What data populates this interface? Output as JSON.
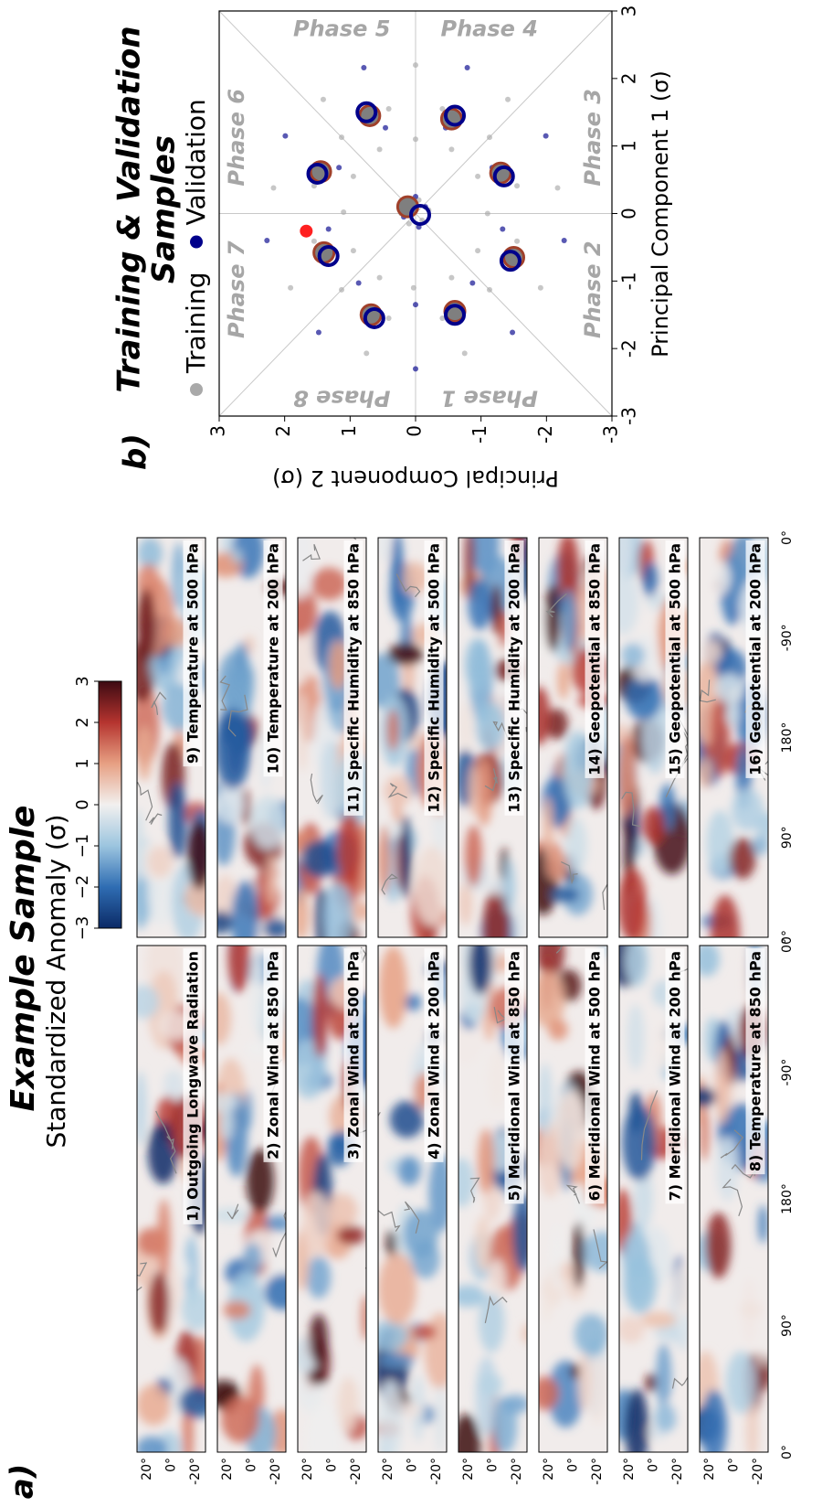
{
  "panel_a": {
    "label": "a)",
    "title": "Example Sample",
    "colorbar": {
      "label": "Standardized Anomaly (σ)",
      "lim": [
        -3,
        3
      ],
      "ticks": [
        {
          "value": -3,
          "label": "−3"
        },
        {
          "value": -2,
          "label": "−2"
        },
        {
          "value": -1,
          "label": "−1"
        },
        0,
        1,
        2,
        3
      ],
      "colors": [
        "#0b2a66",
        "#2f6db3",
        "#9cc5df",
        "#f2f0ef",
        "#e7a083",
        "#b5342f",
        "#3d0a12"
      ]
    },
    "lat_labels": [
      "20°",
      "0°",
      "-20°"
    ],
    "lon_labels": [
      "0°",
      "90°",
      "180°",
      "-90°",
      "0°"
    ],
    "maps": [
      "1) Outgoing Longwave Radiation",
      "2) Zonal Wind at 850 hPa",
      "3) Zonal Wind at 500 hPa",
      "4) Zonal Wind at 200 hPa",
      "5) Meridional Wind at 850 hPa",
      "6) Meridional Wind at 500 hPa",
      "7) Meridional Wind at 200 hPa",
      "8) Temperature at 850 hPa",
      "9) Temperature at 500 hPa",
      "10) Temperature at 200 hPa",
      "11) Specific Humidity at 850 hPa",
      "12) Specific Humidity at 500 hPa",
      "13) Specific Humidity at 200 hPa",
      "14) Geopotential at 850 hPa",
      "15) Geopotential at 500 hPa",
      "16) Geopotential at 200 hPa"
    ]
  },
  "chart_data": {
    "type": "scatter",
    "label": "b)",
    "title": [
      "Training & Validation",
      "Samples"
    ],
    "x_label": "Principal Component 1 (σ)",
    "y_label": "Principal Component 2 (σ)",
    "xlim": [
      -3,
      3
    ],
    "ylim": [
      -3,
      3
    ],
    "xticks": [
      -3,
      -2,
      -1,
      0,
      1,
      2,
      3
    ],
    "yticks": [
      -3,
      -2,
      -1,
      0,
      1,
      2,
      3
    ],
    "legend": "upper center",
    "phases": [
      "Phase 1",
      "Phase 2",
      "Phase 3",
      "Phase 4",
      "Phase 5",
      "Phase 6",
      "Phase 7",
      "Phase 8"
    ],
    "series": [
      {
        "name": "Training",
        "color": "#a9a9a9",
        "marker": "dot",
        "x": [
          1.1,
          0.95,
          0.55,
          0.02,
          -0.55,
          -0.95,
          -1.1,
          -0.95,
          -0.55,
          0.0,
          0.55,
          0.95,
          1.55,
          1.13,
          0.41,
          -0.41,
          -1.13,
          -1.55,
          -1.55,
          -1.13,
          -0.41,
          0.41,
          1.13,
          1.55,
          2.2,
          1.69,
          0.38,
          -1.1,
          -2.07,
          -2.07,
          -1.1,
          0.38,
          1.69,
          0.1,
          -0.15,
          0.05,
          -0.1,
          0.2,
          0.0
        ],
        "values": [
          0.0,
          0.55,
          0.95,
          1.1,
          0.95,
          0.55,
          0.03,
          -0.55,
          -0.95,
          -1.1,
          -0.95,
          -0.55,
          0.41,
          1.13,
          1.55,
          1.55,
          1.13,
          0.41,
          -0.41,
          -1.13,
          -1.55,
          -1.55,
          -1.13,
          -0.41,
          0.0,
          1.41,
          2.17,
          1.91,
          0.75,
          -0.75,
          -1.91,
          -2.17,
          -1.41,
          0.05,
          0.1,
          -0.2,
          -0.1,
          -0.05,
          0.22
        ]
      },
      {
        "name": "Validation",
        "color": "#00008b",
        "marker": "dot",
        "x": [
          1.27,
          0.68,
          -0.23,
          -1.03,
          -1.35,
          -1.03,
          -0.23,
          0.68,
          1.27,
          2.16,
          1.15,
          -0.4,
          -1.76,
          -2.3,
          -1.76,
          -0.4,
          1.15,
          2.16,
          0.15,
          -0.05,
          0.1,
          -0.2,
          0.25
        ],
        "values": [
          0.46,
          1.17,
          1.33,
          0.87,
          0.0,
          -0.87,
          -1.33,
          -1.17,
          -0.46,
          0.79,
          1.99,
          2.27,
          1.48,
          0.0,
          -1.48,
          -2.27,
          -1.99,
          -0.79,
          0.1,
          0.18,
          -0.15,
          -0.05,
          0.0
        ]
      },
      {
        "color": "#7f7f7f",
        "edgecolor": "#a0402a",
        "marker": "disc",
        "x": [
          1.45,
          1.4,
          0.6,
          -0.65,
          -1.45,
          -1.5,
          -0.58,
          0.62,
          0.1
        ],
        "values": [
          0.7,
          -0.55,
          -1.3,
          -1.5,
          -0.6,
          0.68,
          1.4,
          1.45,
          0.12
        ]
      },
      {
        "color": "#00008b",
        "marker": "ring",
        "x": [
          1.5,
          1.45,
          0.55,
          -0.7,
          -1.5,
          -1.55,
          -0.63,
          0.59,
          -0.02
        ],
        "values": [
          0.75,
          -0.6,
          -1.35,
          -1.45,
          -0.6,
          0.63,
          1.33,
          1.5,
          -0.07
        ]
      },
      {
        "color": "#ff2020",
        "marker": "point",
        "x": [
          -0.26
        ],
        "values": [
          1.67
        ]
      }
    ]
  }
}
